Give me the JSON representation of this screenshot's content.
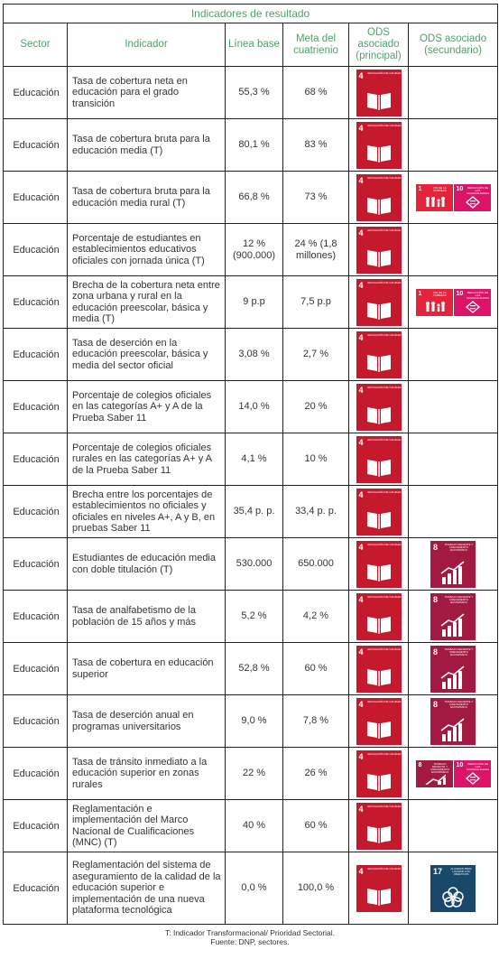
{
  "table": {
    "title": "Indicadores de resultado",
    "headers": {
      "sector": "Sector",
      "indicator": "Indicador",
      "baseline": "Línea base",
      "goal": "Meta del cuatrienio",
      "ods_primary": "ODS asociado (principal)",
      "ods_secondary": "ODS asociado (secundario)"
    },
    "rows": [
      {
        "sector": "Educación",
        "indicator": "Tasa de cobertura neta en educación para el grado transición",
        "baseline": "55,3 %",
        "goal": "68 %",
        "secondary": []
      },
      {
        "sector": "Educación",
        "indicator": "Tasa de cobertura bruta para la educación media (T)",
        "baseline": "80,1 %",
        "goal": "83 %",
        "secondary": []
      },
      {
        "sector": "Educación",
        "indicator": "Tasa de cobertura bruta para la educación media rural (T)",
        "baseline": "66,8 %",
        "goal": "73 %",
        "secondary": [
          "1",
          "10"
        ]
      },
      {
        "sector": "Educación",
        "indicator": "Porcentaje de estudiantes en establecimientos educativos oficiales con jornada única (T)",
        "baseline": "12 % (900.000)",
        "goal": "24 % (1,8 millones)",
        "secondary": []
      },
      {
        "sector": "Educación",
        "indicator": "Brecha de la cobertura neta entre zona urbana y rural en la educación preescolar, básica y media (T)",
        "baseline": "9 p.p",
        "goal": "7,5 p.p",
        "secondary": [
          "1",
          "10"
        ]
      },
      {
        "sector": "Educación",
        "indicator": "Tasa de deserción en la educación preescolar, básica y media del sector oficial",
        "baseline": "3,08 %",
        "goal": "2,7 %",
        "secondary": []
      },
      {
        "sector": "Educación",
        "indicator": "Porcentaje de colegios oficiales en las categorías A+ y A de la Prueba Saber 11",
        "baseline": "14,0 %",
        "goal": "20 %",
        "secondary": []
      },
      {
        "sector": "Educación",
        "indicator": "Porcentaje de colegios oficiales rurales en las categorías A+ y A de la Prueba Saber 11",
        "baseline": "4,1 %",
        "goal": "10 %",
        "secondary": []
      },
      {
        "sector": "Educación",
        "indicator": "Brecha entre los porcentajes de establecimientos no oficiales y oficiales en niveles A+, A y B, en pruebas Saber 11",
        "baseline": "35,4 p. p.",
        "goal": "33,4 p. p.",
        "secondary": []
      },
      {
        "sector": "Educación",
        "indicator": "Estudiantes de educación media con doble titulación (T)",
        "baseline": "530.000",
        "goal": "650.000",
        "secondary": [
          "8"
        ]
      },
      {
        "sector": "Educación",
        "indicator": "Tasa de analfabetismo de la población de 15 años y más",
        "baseline": "5,2 %",
        "goal": "4,2 %",
        "secondary": [
          "8"
        ]
      },
      {
        "sector": "Educación",
        "indicator": "Tasa de cobertura en educación superior",
        "baseline": "52,8 %",
        "goal": "60 %",
        "secondary": [
          "8"
        ]
      },
      {
        "sector": "Educación",
        "indicator": "Tasa de deserción anual en programas universitarios",
        "baseline": "9,0 %",
        "goal": "7,8 %",
        "secondary": [
          "8"
        ]
      },
      {
        "sector": "Educación",
        "indicator": "Tasa de tránsito inmediato a la educación superior en zonas rurales",
        "baseline": "22 %",
        "goal": "26 %",
        "secondary": [
          "8",
          "10"
        ]
      },
      {
        "sector": "Educación",
        "indicator": "Reglamentación e implementación del Marco Nacional de Cualificaciones (MNC) (T)",
        "baseline": "40 %",
        "goal": "60 %",
        "secondary": []
      },
      {
        "sector": "Educación",
        "indicator": "Reglamentación del sistema de aseguramiento de la calidad de la educación superior e implementación de una nueva plataforma tecnológica",
        "baseline": "0,0 %",
        "goal": "100,0 %",
        "secondary": [
          "17"
        ]
      }
    ],
    "footnote_1": "T: Indicador Transformacional/ Prioridad Sectorial.",
    "footnote_2": "Fuente: DNP, sectores."
  },
  "sdg": {
    "primary_number": "4",
    "primary_label": "EDUCACIÓN DE CALIDAD",
    "labels": {
      "1": "FIN DE LA POBREZA",
      "8": "TRABAJO DECENTE Y CRECIMIENTO ECONÓMICO",
      "10": "REDUCCIÓN DE LAS DESIGUALDADES",
      "17": "ALIANZAS PARA LOGRAR LOS OBJETIVOS"
    },
    "colors": {
      "4": "#c5192d",
      "8": "#a21942",
      "10": "#dd1367",
      "1": "#e5243b",
      "17": "#19486a"
    }
  }
}
